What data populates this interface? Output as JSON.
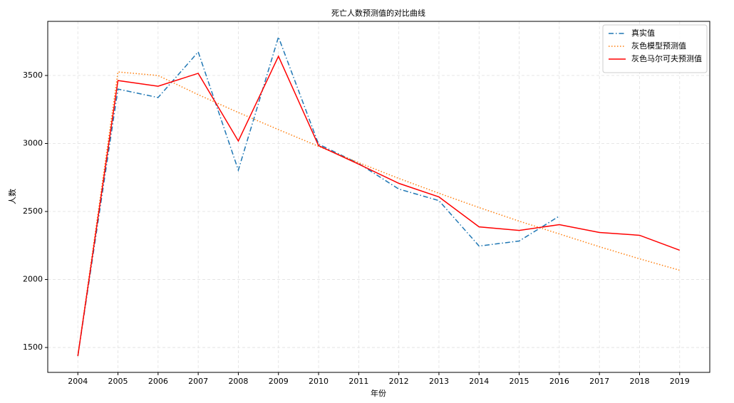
{
  "chart_data": {
    "type": "line",
    "title": "死亡人数预测值的对比曲线",
    "xlabel": "年份",
    "ylabel": "人数",
    "x": [
      2004,
      2005,
      2006,
      2007,
      2008,
      2009,
      2010,
      2011,
      2012,
      2013,
      2014,
      2015,
      2016,
      2017,
      2018,
      2019
    ],
    "series": [
      {
        "name": "真实值",
        "color": "#1f77b4",
        "linestyle": "-.",
        "values": [
          1437,
          3400,
          3338,
          3673,
          2804,
          3783,
          2995,
          2853,
          2665,
          2580,
          2246,
          2283,
          2466,
          null,
          null,
          null
        ]
      },
      {
        "name": "灰色模型预测值",
        "color": "#ff7f0e",
        "linestyle": ":",
        "values": [
          1437,
          3526,
          3500,
          3359,
          3228,
          3102,
          2979,
          2859,
          2743,
          2634,
          2529,
          2429,
          2335,
          2241,
          2152,
          2068
        ]
      },
      {
        "name": "灰色马尔可夫预测值",
        "color": "#ff0000",
        "linestyle": "-",
        "values": [
          1437,
          3463,
          3421,
          3516,
          3018,
          3641,
          2984,
          2848,
          2707,
          2607,
          2387,
          2361,
          2403,
          2346,
          2325,
          2215
        ]
      }
    ],
    "xlim": [
      2003.25,
      2019.75
    ],
    "xticks": [
      2004,
      2005,
      2006,
      2007,
      2008,
      2009,
      2010,
      2011,
      2012,
      2013,
      2014,
      2015,
      2016,
      2017,
      2018,
      2019
    ],
    "ylim": [
      1317,
      3898
    ],
    "yticks": [
      1500,
      2000,
      2500,
      3000,
      3500
    ],
    "grid": true,
    "legend": "upper right"
  }
}
